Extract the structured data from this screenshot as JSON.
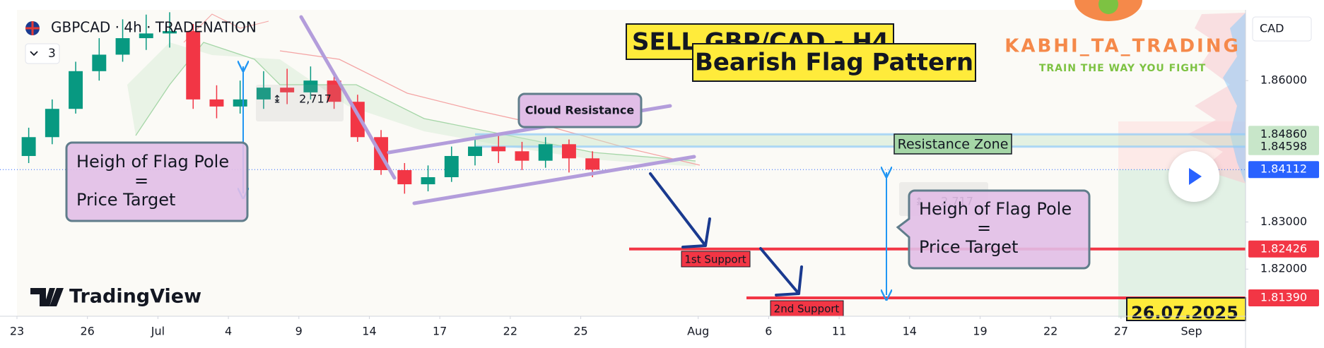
{
  "chart_data": {
    "type": "candlestick",
    "symbol": "GBPCAD · 4h · TRADENATION",
    "indicator_count": "3",
    "currency": "CAD",
    "title": "SELL GBP/CAD - H4",
    "subtitle": "Bearish Flag Pattern",
    "x": [
      0.5,
      1.5,
      2.5,
      3.5,
      4.5,
      5.5,
      6.5,
      7.5,
      8.5,
      9.5,
      10.5,
      11.5,
      12.5,
      13.5,
      14.5,
      15.5,
      16.5,
      17.5,
      18.5,
      19.5,
      20.5,
      21.5,
      22.5,
      23.5,
      24.5
    ],
    "open": [
      1.844,
      1.848,
      1.854,
      1.862,
      1.8655,
      1.869,
      1.87,
      1.8705,
      1.856,
      1.8545,
      1.856,
      1.8585,
      1.8575,
      1.86,
      1.8555,
      1.848,
      1.841,
      1.838,
      1.8395,
      1.844,
      1.846,
      1.845,
      1.843,
      1.8465,
      1.8435
    ],
    "high": [
      1.85,
      1.856,
      1.864,
      1.869,
      1.873,
      1.874,
      1.8745,
      1.872,
      1.859,
      1.86,
      1.862,
      1.8625,
      1.863,
      1.862,
      1.857,
      1.8495,
      1.8425,
      1.842,
      1.846,
      1.848,
      1.8485,
      1.847,
      1.848,
      1.8475,
      1.845
    ],
    "low": [
      1.8425,
      1.8465,
      1.853,
      1.86,
      1.864,
      1.8665,
      1.867,
      1.854,
      1.852,
      1.853,
      1.854,
      1.855,
      1.856,
      1.854,
      1.847,
      1.84,
      1.836,
      1.8365,
      1.8385,
      1.842,
      1.8425,
      1.841,
      1.8415,
      1.8405,
      1.8395
    ],
    "close": [
      1.848,
      1.854,
      1.862,
      1.8655,
      1.869,
      1.87,
      1.8705,
      1.856,
      1.8545,
      1.856,
      1.8585,
      1.8575,
      1.86,
      1.8555,
      1.848,
      1.841,
      1.838,
      1.8395,
      1.844,
      1.846,
      1.845,
      1.843,
      1.8465,
      1.8435,
      1.8411
    ],
    "up_color": "#089981",
    "down_color": "#f23645",
    "xlim": [
      0,
      52.3
    ],
    "xticks": [
      {
        "value": 0,
        "label": "23"
      },
      {
        "value": 3,
        "label": "26"
      },
      {
        "value": 6,
        "label": "Jul"
      },
      {
        "value": 9,
        "label": "4"
      },
      {
        "value": 12,
        "label": "9"
      },
      {
        "value": 15,
        "label": "14"
      },
      {
        "value": 18,
        "label": "17"
      },
      {
        "value": 21,
        "label": "22"
      },
      {
        "value": 24,
        "label": "25"
      },
      {
        "value": 29,
        "label": "Aug"
      },
      {
        "value": 32,
        "label": "6"
      },
      {
        "value": 35,
        "label": "11"
      },
      {
        "value": 38,
        "label": "14"
      },
      {
        "value": 41,
        "label": "19"
      },
      {
        "value": 44,
        "label": "22"
      },
      {
        "value": 47,
        "label": "27"
      },
      {
        "value": 50,
        "label": "Sep"
      }
    ],
    "ylim": [
      1.81,
      1.875
    ],
    "yticks": [
      {
        "value": 1.86,
        "label": "1.86000"
      },
      {
        "value": 1.83,
        "label": "1.83000"
      },
      {
        "value": 1.82,
        "label": "1.82000"
      }
    ],
    "price_levels": [
      {
        "value": 1.8486,
        "label": "1.84860",
        "color": "#c8e6c9"
      },
      {
        "value": 1.84598,
        "label": "1.84598",
        "color": "#c8e6c9"
      },
      {
        "value": 1.84112,
        "label": "1.84112",
        "color": "#2962ff"
      },
      {
        "value": 1.82426,
        "label": "1.82426",
        "color": "#f23645"
      },
      {
        "value": 1.8139,
        "label": "1.81390",
        "color": "#f23645"
      }
    ],
    "annotations": {
      "cloud_resistance": "Cloud Resistance",
      "resistance_zone": "Resistance Zone",
      "support_1": "1st Support",
      "support_2": "2nd Support",
      "flag_note": [
        "Heigh of Flag Pole",
        "=",
        "Price Target"
      ],
      "measure": "2,717",
      "brand": "KABHI_TA_TRADING",
      "slogan": "TRAIN THE WAY YOU FIGHT",
      "watermark": "TradingView",
      "date": "26.07.2025"
    }
  }
}
